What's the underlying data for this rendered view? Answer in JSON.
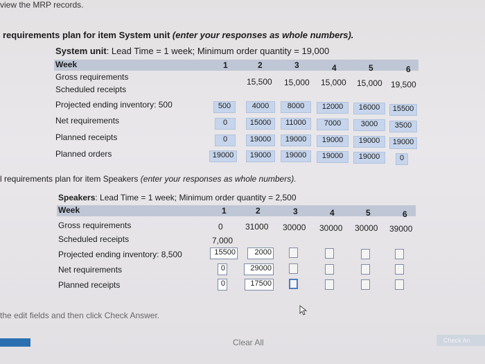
{
  "top_text": "view the MRP records.",
  "section1": {
    "title": "requirements plan for item System unit",
    "title_note": "(enter your responses as whole numbers).",
    "item_name": "System unit",
    "item_info": ": Lead Time = 1 week; Minimum order quantity = 19,000",
    "week_label": "Week",
    "weeks": [
      "1",
      "2",
      "3",
      "4",
      "5",
      "6"
    ],
    "rows": [
      {
        "label": "Gross requirements",
        "values": [
          "",
          "15,500",
          "15,000",
          "15,000",
          "15,000",
          "19,500"
        ]
      },
      {
        "label": "Scheduled receipts",
        "values": [
          "",
          "",
          "",
          "",
          "",
          ""
        ]
      },
      {
        "label": "Projected ending inventory: 500",
        "values": [
          "500",
          "4000",
          "8000",
          "12000",
          "16000",
          "15500"
        ]
      },
      {
        "label": "Net requirements",
        "values": [
          "0",
          "15000",
          "11000",
          "7000",
          "3000",
          "3500"
        ]
      },
      {
        "label": "Planned receipts",
        "values": [
          "0",
          "19000",
          "19000",
          "19000",
          "19000",
          "19000"
        ]
      },
      {
        "label": "Planned orders",
        "values": [
          "19000",
          "19000",
          "19000",
          "19000",
          "19000",
          "0"
        ]
      }
    ]
  },
  "section2": {
    "title": "l requirements plan for item Speakers",
    "title_note": "(enter your responses as whole numbers).",
    "item_name": "Speakers",
    "item_info": ": Lead Time = 1 week; Minimum order quantity = 2,500",
    "week_label": "Week",
    "weeks": [
      "1",
      "2",
      "3",
      "4",
      "5",
      "6"
    ],
    "gross": {
      "label": "Gross requirements",
      "values": [
        "0",
        "31000",
        "30000",
        "30000",
        "30000",
        "39000"
      ]
    },
    "scheduled": {
      "label": "Scheduled receipts",
      "values": [
        "7,000",
        "",
        "",
        "",
        "",
        ""
      ]
    },
    "projected": {
      "label": "Projected ending inventory: 8,500",
      "values": [
        "15500",
        "2000",
        "",
        "",
        "",
        ""
      ]
    },
    "net": {
      "label": "Net requirements",
      "values": [
        "0",
        "29000",
        "",
        "",
        "",
        ""
      ]
    },
    "planned": {
      "label": "Planned receipts",
      "values": [
        "0",
        "17500",
        "",
        "",
        "",
        ""
      ]
    }
  },
  "instruction": "the edit fields and then click Check Answer.",
  "clear_all": "Clear All",
  "check_answer": "Check An"
}
